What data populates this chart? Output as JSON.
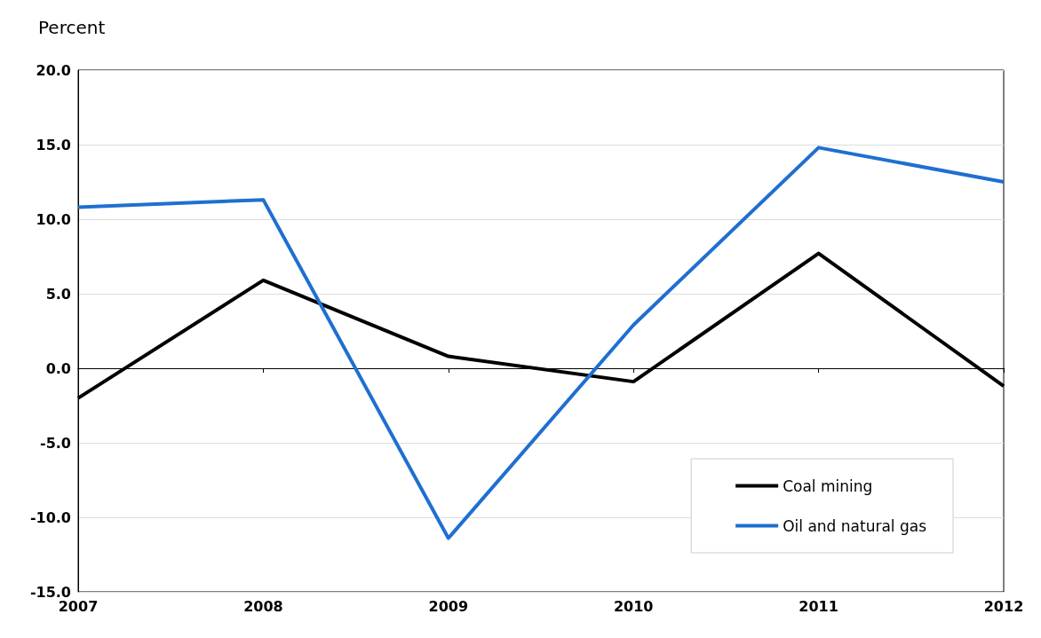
{
  "chart_data": {
    "type": "line",
    "ylabel": "Percent",
    "categories": [
      "2007",
      "2008",
      "2009",
      "2010",
      "2011",
      "2012"
    ],
    "series": [
      {
        "name": "Coal mining",
        "color": "#000000",
        "values": [
          -2.0,
          5.9,
          0.8,
          -0.9,
          7.7,
          -1.2
        ]
      },
      {
        "name": "Oil and natural gas",
        "color": "#1f6fd0",
        "values": [
          10.8,
          11.3,
          -11.4,
          2.9,
          14.8,
          12.5
        ]
      }
    ],
    "ylim": [
      -15,
      20
    ],
    "yticks": [
      {
        "value": -15,
        "label": "-15.0"
      },
      {
        "value": -10,
        "label": "-10.0"
      },
      {
        "value": -5,
        "label": "-5.0"
      },
      {
        "value": 0,
        "label": "0.0"
      },
      {
        "value": 5,
        "label": "5.0"
      },
      {
        "value": 10,
        "label": "10.0"
      },
      {
        "value": 15,
        "label": "15.0"
      },
      {
        "value": 20,
        "label": "20.0"
      }
    ],
    "grid": "y",
    "legend": "bottom right",
    "marker": "none",
    "line_style": "solid"
  }
}
